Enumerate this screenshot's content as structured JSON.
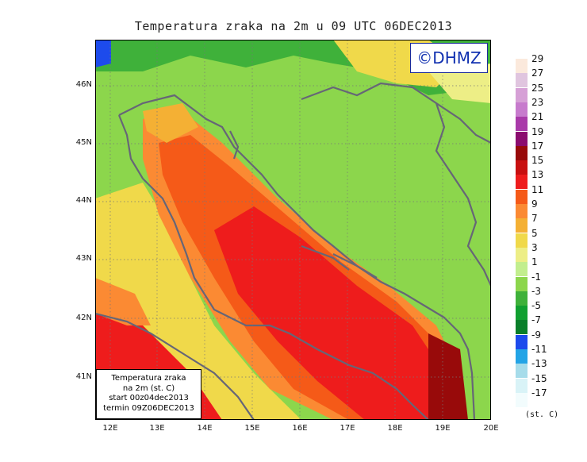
{
  "title": "Temperatura zraka na 2m u 09 UTC 06DEC2013",
  "logo": "©DHMZ",
  "info_box": {
    "line1": "Temperatura zraka",
    "line2": "na 2m (st. C)",
    "line3": "start 00z04dec2013",
    "line4": "termin 09Z06DEC2013"
  },
  "lat_labels": [
    "46N",
    "45N",
    "44N",
    "43N",
    "42N",
    "41N"
  ],
  "lon_labels": [
    "12E",
    "13E",
    "14E",
    "15E",
    "16E",
    "17E",
    "18E",
    "19E",
    "20E"
  ],
  "legend": {
    "labels": [
      "29",
      "27",
      "25",
      "23",
      "21",
      "19",
      "17",
      "15",
      "13",
      "11",
      "9",
      "7",
      "5",
      "3",
      "1",
      "-1",
      "-3",
      "-5",
      "-7",
      "-9",
      "-11",
      "-13",
      "-15",
      "-17"
    ],
    "colors": [
      "#fbe9dc",
      "#e0c5df",
      "#d6a0d6",
      "#c77bcd",
      "#a93aa9",
      "#8b0c6f",
      "#980a0a",
      "#c81010",
      "#ee1c1c",
      "#f55a18",
      "#fb8a33",
      "#f4b034",
      "#f0d94a",
      "#edee86",
      "#c2ee8e",
      "#8cd64c",
      "#3fb13a",
      "#11a030",
      "#0a7f2a",
      "#1d4bec",
      "#23a4e6",
      "#a6dcea",
      "#d9f3f7",
      "#f2fcfd"
    ],
    "unit": "(st. C)"
  },
  "map_colors": {
    "sea_hot": "#ee1c1c",
    "sea_warm": "#f55a18",
    "coast": "#fb8a33",
    "mild": "#f0d94a",
    "cool": "#edee86",
    "land_green": "#8cd64c",
    "land_dark": "#3fb13a",
    "coastline": "#666677"
  }
}
